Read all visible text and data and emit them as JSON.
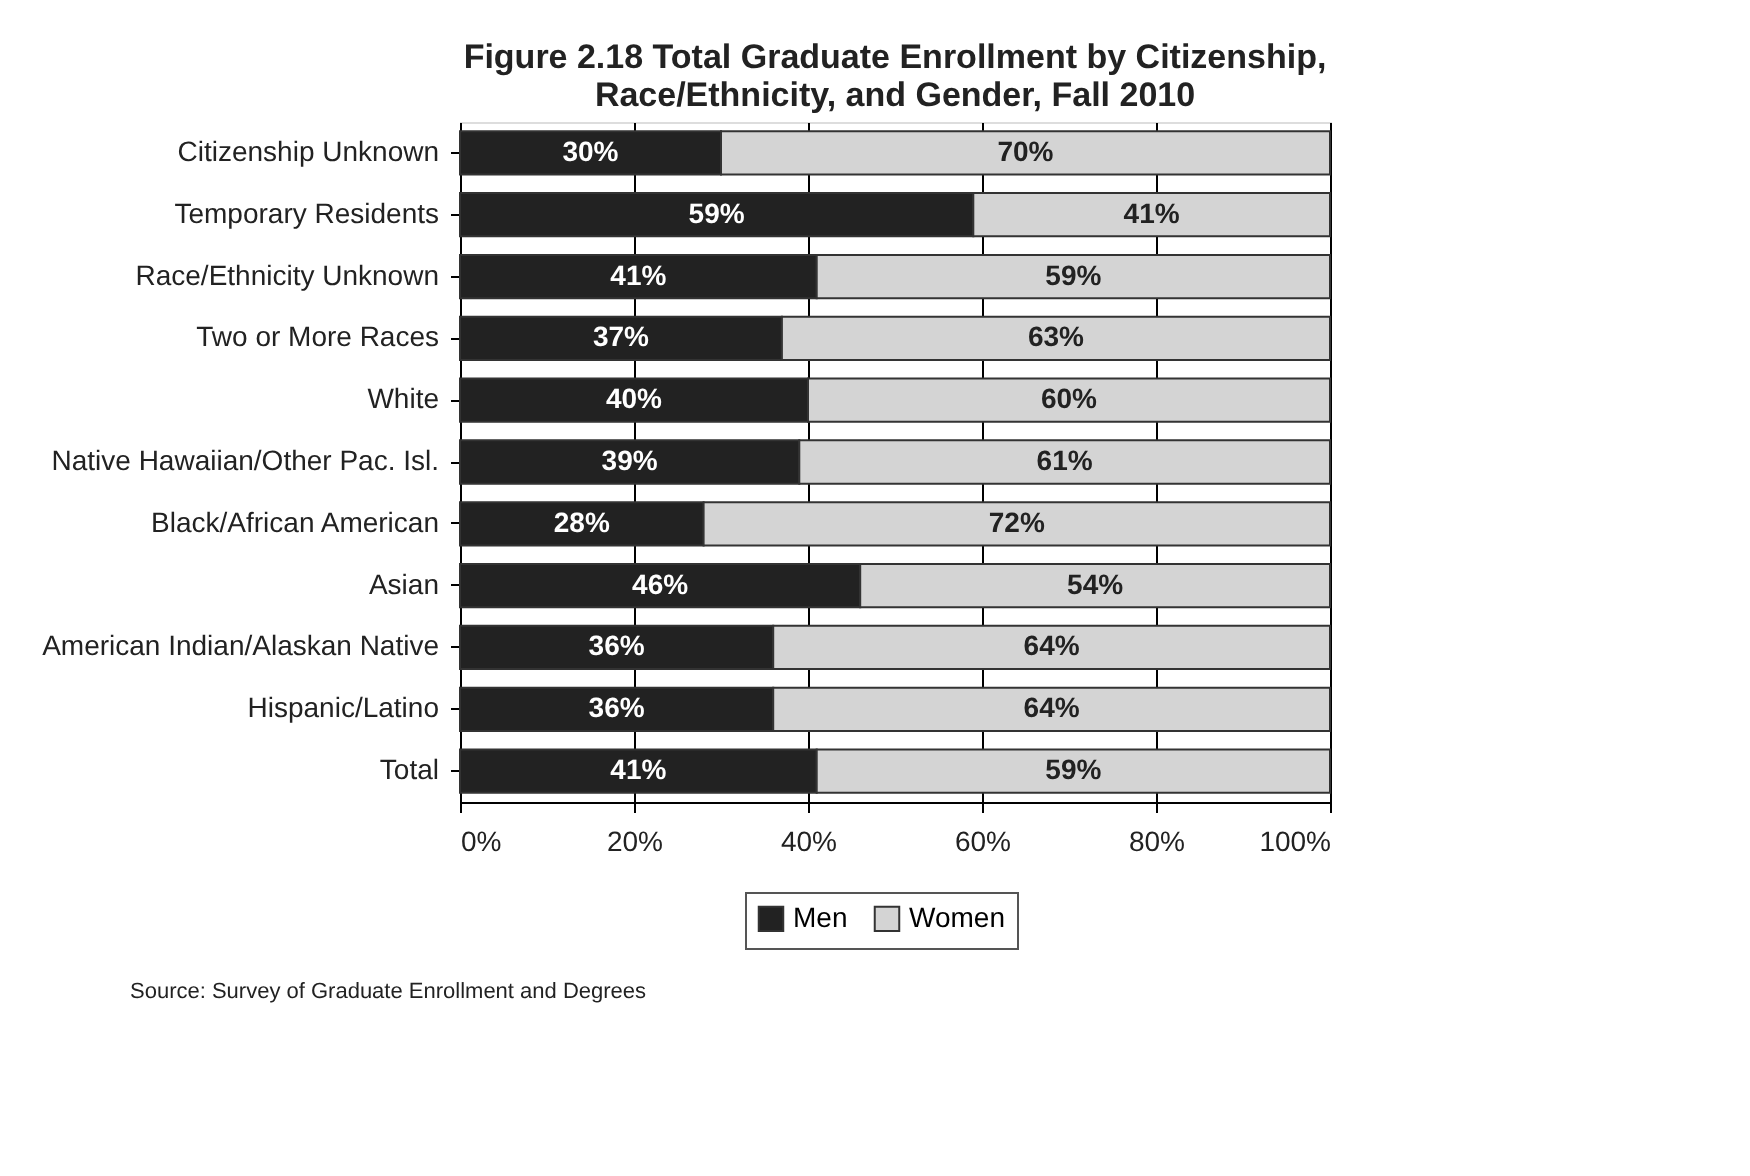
{
  "chart_data": {
    "type": "bar",
    "orientation": "horizontal",
    "stacked": true,
    "title": "Figure 2.18  Total Graduate Enrollment by Citizenship, Race/Ethnicity, and Gender, Fall 2010",
    "categories": [
      "Citizenship Unknown",
      "Temporary Residents",
      "Race/Ethnicity Unknown",
      "Two or More Races",
      "White",
      "Native Hawaiian/Other Pac. Isl.",
      "Black/African American",
      "Asian",
      "American Indian/Alaskan Native",
      "Hispanic/Latino",
      "Total"
    ],
    "series": [
      {
        "name": "Men",
        "color": "#222222",
        "values": [
          30,
          59,
          41,
          37,
          40,
          39,
          28,
          46,
          36,
          36,
          41
        ],
        "value_labels": [
          "30%",
          "59%",
          "41%",
          "37%",
          "40%",
          "39%",
          "28%",
          "46%",
          "36%",
          "36%",
          "41%"
        ]
      },
      {
        "name": "Women",
        "color": "#d4d4d4",
        "values": [
          70,
          41,
          59,
          63,
          60,
          61,
          72,
          54,
          64,
          64,
          59
        ],
        "value_labels": [
          "70%",
          "41%",
          "59%",
          "63%",
          "60%",
          "61%",
          "72%",
          "54%",
          "64%",
          "64%",
          "59%"
        ]
      }
    ],
    "xlim": [
      0,
      100
    ],
    "xticks": [
      {
        "value": 0,
        "label": "0%"
      },
      {
        "value": 20,
        "label": "20%"
      },
      {
        "value": 40,
        "label": "40%"
      },
      {
        "value": 60,
        "label": "60%"
      },
      {
        "value": 80,
        "label": "80%"
      },
      {
        "value": 100,
        "label": "100%"
      }
    ],
    "grid": "x",
    "legend": "bottom",
    "annotations": [
      "Source: Survey of Graduate Enrollment and Degrees"
    ]
  }
}
